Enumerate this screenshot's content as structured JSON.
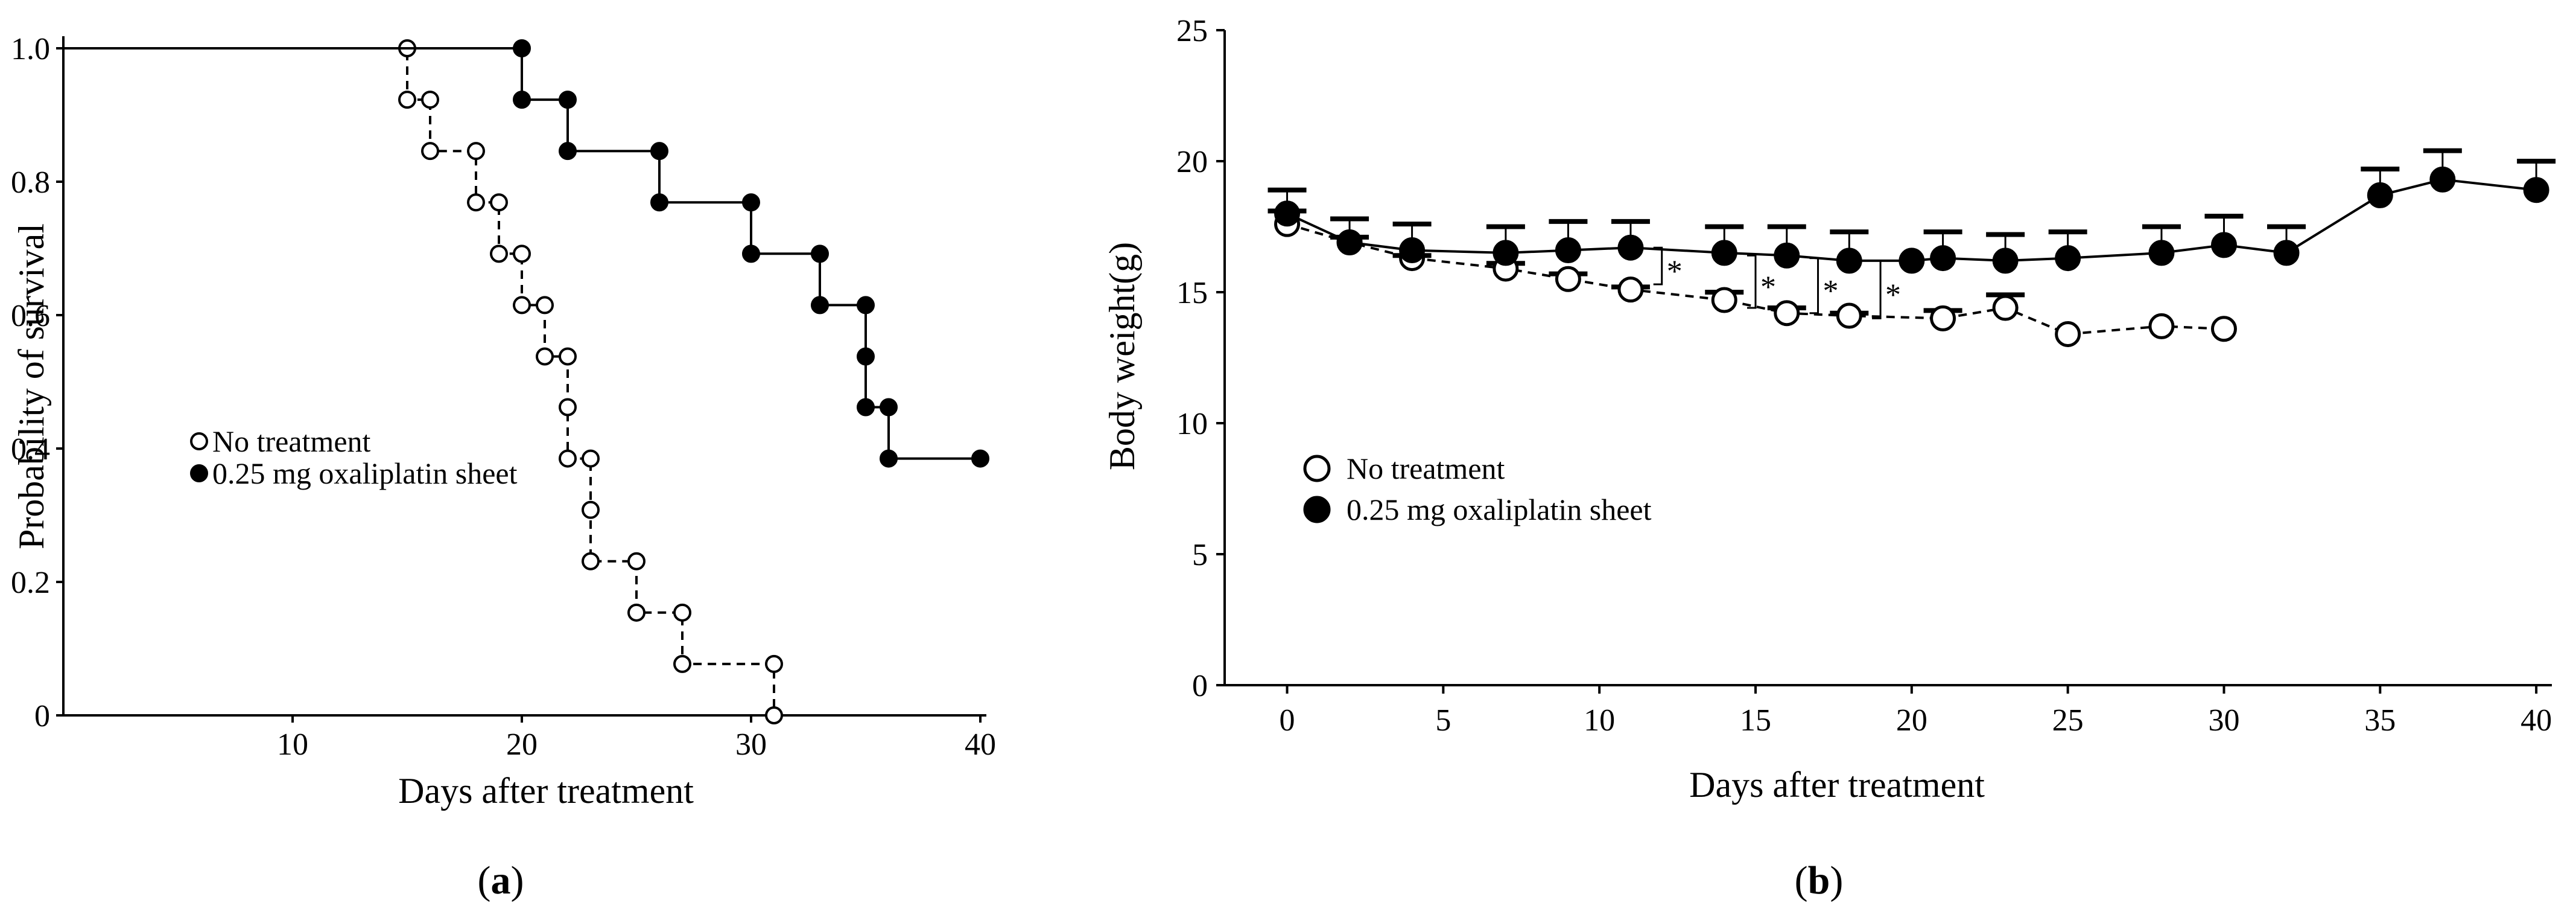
{
  "panels": [
    {
      "label_open": "(",
      "label_letter": "a",
      "label_close": ")"
    },
    {
      "label_open": "(",
      "label_letter": "b",
      "label_close": ")"
    }
  ],
  "chart_data": [
    {
      "type": "line",
      "xlabel": "Days after treatment",
      "ylabel": "Probability of survival",
      "xlim": [
        0,
        40
      ],
      "ylim": [
        0,
        1.0
      ],
      "xticks": [
        10,
        20,
        30,
        40
      ],
      "xtick_labels": [
        "10",
        "20",
        "30",
        "40"
      ],
      "yticks": [
        0,
        0.2,
        0.4,
        0.6,
        0.8,
        1.0
      ],
      "ytick_labels": [
        "0",
        "0.2",
        "0.4",
        "0.6",
        "0.8",
        "1.0"
      ],
      "grid": false,
      "legend_position": "center-left",
      "series": [
        {
          "name": "No treatment",
          "marker": "open-circle",
          "line_style": "dashed",
          "step": true,
          "x": [
            0,
            15,
            15,
            16,
            16,
            18,
            18,
            19,
            19,
            20,
            20,
            21,
            21,
            22,
            22,
            22,
            23,
            23,
            23,
            25,
            25,
            27,
            27,
            31,
            31
          ],
          "y": [
            1.0,
            1.0,
            0.923,
            0.923,
            0.846,
            0.846,
            0.769,
            0.769,
            0.692,
            0.692,
            0.615,
            0.615,
            0.538,
            0.538,
            0.462,
            0.385,
            0.385,
            0.308,
            0.231,
            0.231,
            0.154,
            0.154,
            0.077,
            0.077,
            0.0
          ],
          "marker_x": [
            15,
            15,
            16,
            16,
            18,
            18,
            19,
            19,
            20,
            20,
            21,
            21,
            22,
            22,
            22,
            23,
            23,
            23,
            25,
            25,
            27,
            27,
            31,
            31
          ],
          "marker_y": [
            1.0,
            0.923,
            0.923,
            0.846,
            0.846,
            0.769,
            0.769,
            0.692,
            0.692,
            0.615,
            0.615,
            0.538,
            0.538,
            0.462,
            0.385,
            0.385,
            0.308,
            0.231,
            0.231,
            0.154,
            0.154,
            0.077,
            0.077,
            0.0
          ]
        },
        {
          "name": "0.25 mg oxaliplatin sheet",
          "marker": "filled-circle",
          "line_style": "solid",
          "step": true,
          "x": [
            0,
            20,
            20,
            22,
            22,
            26,
            26,
            30,
            30,
            33,
            33,
            35,
            35,
            35,
            36,
            36,
            40
          ],
          "y": [
            1.0,
            1.0,
            0.923,
            0.923,
            0.846,
            0.846,
            0.769,
            0.769,
            0.692,
            0.692,
            0.615,
            0.615,
            0.538,
            0.462,
            0.462,
            0.385,
            0.385
          ],
          "marker_x": [
            20,
            20,
            22,
            22,
            26,
            26,
            30,
            30,
            33,
            33,
            35,
            35,
            35,
            36,
            36,
            40
          ],
          "marker_y": [
            1.0,
            0.923,
            0.923,
            0.846,
            0.846,
            0.769,
            0.769,
            0.692,
            0.692,
            0.615,
            0.615,
            0.538,
            0.462,
            0.462,
            0.385,
            0.385
          ]
        }
      ]
    },
    {
      "type": "line",
      "xlabel": "Days after treatment",
      "ylabel": "Body weight(g)",
      "xlim": [
        -2,
        40.5
      ],
      "ylim": [
        0,
        25
      ],
      "xticks": [
        0,
        5,
        10,
        15,
        20,
        25,
        30,
        35,
        40
      ],
      "xtick_labels": [
        "0",
        "5",
        "10",
        "15",
        "20",
        "25",
        "30",
        "35",
        "40"
      ],
      "yticks": [
        0,
        5,
        10,
        15,
        20,
        25
      ],
      "ytick_labels": [
        "0",
        "5",
        "10",
        "15",
        "20",
        "25"
      ],
      "grid": false,
      "legend_position": "lower-left",
      "series": [
        {
          "name": "No treatment",
          "marker": "open-circle",
          "line_style": "dashed",
          "x": [
            0,
            2,
            4,
            7,
            9,
            11,
            14,
            16,
            18,
            21,
            23,
            25,
            28,
            30
          ],
          "y": [
            17.6,
            16.9,
            16.3,
            15.9,
            15.5,
            15.1,
            14.7,
            14.2,
            14.1,
            14.0,
            14.4,
            13.4,
            13.7,
            13.6
          ],
          "error": [
            0.5,
            0.2,
            0.1,
            0.2,
            0.2,
            0.1,
            0.3,
            0.2,
            0.1,
            0.3,
            0.5,
            0.0,
            0.0,
            0.0
          ]
        },
        {
          "name": "0.25 mg oxaliplatin sheet",
          "marker": "filled-circle",
          "line_style": "solid",
          "x": [
            0,
            2,
            4,
            7,
            9,
            11,
            14,
            16,
            18,
            20,
            21,
            23,
            25,
            28,
            30,
            32,
            35,
            37,
            40
          ],
          "y": [
            18.0,
            16.9,
            16.6,
            16.5,
            16.6,
            16.7,
            16.5,
            16.4,
            16.2,
            16.2,
            16.3,
            16.2,
            16.3,
            16.5,
            16.8,
            16.5,
            18.7,
            19.3,
            18.9
          ],
          "error": [
            0.9,
            0.9,
            1.0,
            1.0,
            1.1,
            1.0,
            1.0,
            1.1,
            1.1,
            0.0,
            1.0,
            1.0,
            1.0,
            1.0,
            1.1,
            1.0,
            1.0,
            1.1,
            1.1
          ]
        }
      ],
      "significance": [
        {
          "x": 12,
          "y_low": 15.3,
          "y_high": 16.7,
          "label": "*"
        },
        {
          "x": 15,
          "y_low": 14.4,
          "y_high": 16.4,
          "label": "*"
        },
        {
          "x": 17,
          "y_low": 14.2,
          "y_high": 16.3,
          "label": "*"
        },
        {
          "x": 19,
          "y_low": 14.0,
          "y_high": 16.2,
          "label": "*"
        }
      ]
    }
  ]
}
